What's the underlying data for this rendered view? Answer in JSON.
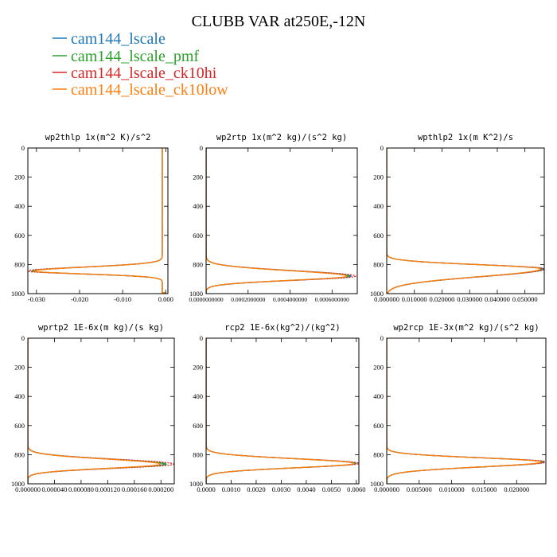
{
  "figure": {
    "title": "CLUBB VAR at250E,-12N"
  },
  "legend": {
    "items": [
      {
        "label": "cam144_lscale",
        "color": "#1f77b4"
      },
      {
        "label": "cam144_lscale_pmf",
        "color": "#2ca02c"
      },
      {
        "label": "cam144_lscale_ck10hi",
        "color": "#d62728"
      },
      {
        "label": "cam144_lscale_ck10low",
        "color": "#ff7f0e"
      }
    ]
  },
  "chart_data": [
    {
      "type": "line",
      "title": "wp2thlp  1x(m^2 K)/s^2",
      "xlim": [
        -0.032,
        0.0005
      ],
      "ylim": [
        1000,
        0
      ],
      "xticks": [
        -0.03,
        -0.02,
        -0.01,
        0.0
      ],
      "xtick_labels": [
        "-0.030",
        "-0.020",
        "-0.010",
        "0.000"
      ],
      "yticks": [
        0,
        200,
        400,
        600,
        800,
        1000
      ],
      "ytick_labels": [
        "0",
        "200",
        "400",
        "600",
        "800",
        "1000"
      ],
      "shape": {
        "kind": "neg",
        "base": -0.0008,
        "peak_p": 845,
        "wu": 38,
        "wd": 28,
        "tail": 0.0
      },
      "series": [
        {
          "name": "cam144_lscale",
          "peak": -0.0308
        },
        {
          "name": "cam144_lscale_pmf",
          "peak": -0.031
        },
        {
          "name": "cam144_lscale_ck10hi",
          "peak": -0.0322
        },
        {
          "name": "cam144_lscale_ck10low",
          "peak": -0.0305
        }
      ]
    },
    {
      "type": "line",
      "title": "wp2rtp  1x(m^2 kg)/(s^2 kg)",
      "xlim": [
        0,
        0.00072
      ],
      "ylim": [
        1000,
        0
      ],
      "xticks": [
        0,
        0.0002,
        0.0004,
        0.0006
      ],
      "xtick_labels": [
        "0.0000000000",
        "0.0002000000",
        "0.0004000000",
        "0.0006000000"
      ],
      "yticks": [
        0,
        200,
        400,
        600,
        800,
        1000
      ],
      "ytick_labels": [
        "0",
        "200",
        "400",
        "600",
        "800",
        "1000"
      ],
      "shape": {
        "kind": "pos",
        "base": 0.0,
        "peak_p": 880,
        "wu": 52,
        "wd": 40,
        "tail": 0.0
      },
      "series": [
        {
          "name": "cam144_lscale",
          "peak": 0.00069
        },
        {
          "name": "cam144_lscale_pmf",
          "peak": 0.00068
        },
        {
          "name": "cam144_lscale_ck10hi",
          "peak": 0.000712
        },
        {
          "name": "cam144_lscale_ck10low",
          "peak": 0.00067
        }
      ]
    },
    {
      "type": "line",
      "title": "wpthlp2  1x(m K^2)/s",
      "xlim": [
        0,
        0.057
      ],
      "ylim": [
        1000,
        0
      ],
      "xticks": [
        0,
        0.01,
        0.02,
        0.03,
        0.04,
        0.05
      ],
      "xtick_labels": [
        "0.000000",
        "0.010000",
        "0.020000",
        "0.030000",
        "0.040000",
        "0.050000"
      ],
      "yticks": [
        0,
        200,
        400,
        600,
        800,
        1000
      ],
      "ytick_labels": [
        "0",
        "200",
        "400",
        "600",
        "800",
        "1000"
      ],
      "shape": {
        "kind": "pos",
        "base": 0.0,
        "peak_p": 830,
        "wu": 40,
        "wd": 75,
        "tail": 0.0
      },
      "series": [
        {
          "name": "cam144_lscale",
          "peak": 0.0566
        },
        {
          "name": "cam144_lscale_pmf",
          "peak": 0.056
        },
        {
          "name": "cam144_lscale_ck10hi",
          "peak": 0.0572
        },
        {
          "name": "cam144_lscale_ck10low",
          "peak": 0.0556
        }
      ]
    },
    {
      "type": "line",
      "title": "wprtp2  1E-6x(m kg)/(s kg)",
      "xlim": [
        0,
        0.00022
      ],
      "ylim": [
        1000,
        0
      ],
      "xticks": [
        0,
        4e-05,
        8e-05,
        0.00012,
        0.00016,
        0.0002
      ],
      "xtick_labels": [
        "0.000000",
        "0.000040",
        "0.000080",
        "0.000120",
        "0.000160",
        "0.000200"
      ],
      "yticks": [
        0,
        200,
        400,
        600,
        800,
        1000
      ],
      "ytick_labels": [
        "0",
        "200",
        "400",
        "600",
        "800",
        "1000"
      ],
      "shape": {
        "kind": "pos",
        "base": 0.0,
        "peak_p": 865,
        "wu": 48,
        "wd": 40,
        "tail": 0.0
      },
      "series": [
        {
          "name": "cam144_lscale",
          "peak": 0.000205
        },
        {
          "name": "cam144_lscale_pmf",
          "peak": 0.000208
        },
        {
          "name": "cam144_lscale_ck10hi",
          "peak": 0.000219
        },
        {
          "name": "cam144_lscale_ck10low",
          "peak": 0.000199
        }
      ]
    },
    {
      "type": "line",
      "title": "rcp2  1E-6x(kg^2)/(kg^2)",
      "xlim": [
        0,
        0.0061
      ],
      "ylim": [
        1000,
        0
      ],
      "xticks": [
        0,
        0.001,
        0.002,
        0.003,
        0.004,
        0.005,
        0.006
      ],
      "xtick_labels": [
        "0.0000",
        "0.0010",
        "0.0020",
        "0.0030",
        "0.0040",
        "0.0050",
        "0.0060"
      ],
      "yticks": [
        0,
        200,
        400,
        600,
        800,
        1000
      ],
      "ytick_labels": [
        "0",
        "200",
        "400",
        "600",
        "800",
        "1000"
      ],
      "shape": {
        "kind": "pos",
        "base": 0.0,
        "peak_p": 860,
        "wu": 45,
        "wd": 42,
        "tail": 0.0
      },
      "series": [
        {
          "name": "cam144_lscale",
          "peak": 0.00598
        },
        {
          "name": "cam144_lscale_pmf",
          "peak": 0.00595
        },
        {
          "name": "cam144_lscale_ck10hi",
          "peak": 0.0061
        },
        {
          "name": "cam144_lscale_ck10low",
          "peak": 0.0059
        }
      ]
    },
    {
      "type": "line",
      "title": "wp2rcp  1E-3x(m^2 kg)/(s^2 kg)",
      "xlim": [
        0,
        0.0245
      ],
      "ylim": [
        1000,
        0
      ],
      "xticks": [
        0,
        0.005,
        0.01,
        0.015,
        0.02
      ],
      "xtick_labels": [
        "0.000000",
        "0.005000",
        "0.010000",
        "0.015000",
        "0.020000"
      ],
      "yticks": [
        0,
        200,
        400,
        600,
        800,
        1000
      ],
      "ytick_labels": [
        "0",
        "200",
        "400",
        "600",
        "800",
        "1000"
      ],
      "shape": {
        "kind": "pos",
        "base": 0.0,
        "peak_p": 850,
        "wu": 40,
        "wd": 48,
        "tail": 0.0
      },
      "series": [
        {
          "name": "cam144_lscale",
          "peak": 0.0242
        },
        {
          "name": "cam144_lscale_pmf",
          "peak": 0.024
        },
        {
          "name": "cam144_lscale_ck10hi",
          "peak": 0.0246
        },
        {
          "name": "cam144_lscale_ck10low",
          "peak": 0.0238
        }
      ]
    }
  ]
}
